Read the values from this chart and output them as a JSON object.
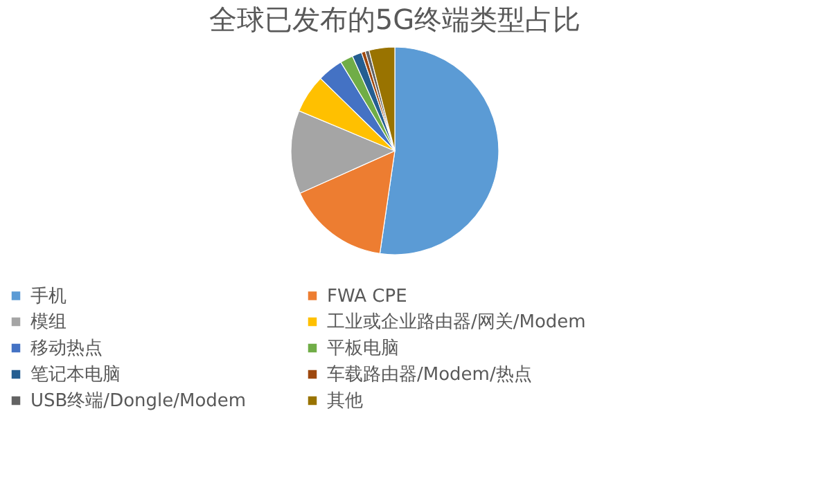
{
  "chart_data": {
    "type": "pie",
    "title": "全球已发布的5G终端类型占比",
    "categories": [
      "手机",
      "FWA CPE",
      "模组",
      "工业或企业路由器/网关/Modem",
      "移动热点",
      "平板电脑",
      "笔记本电脑",
      "车载路由器/Modem/热点",
      "USB终端/Dongle/Modem",
      "其他"
    ],
    "values": [
      52.3,
      16,
      13,
      6,
      4,
      2,
      1.5,
      0.6,
      0.6,
      4
    ],
    "colors": [
      "#5b9bd5",
      "#ed7d31",
      "#a5a5a5",
      "#ffc000",
      "#4472c4",
      "#70ad47",
      "#255e91",
      "#9e480e",
      "#636363",
      "#997300"
    ],
    "legend": "bottom"
  }
}
